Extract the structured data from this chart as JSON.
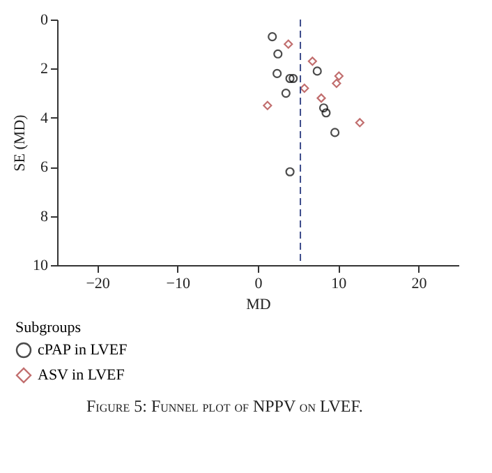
{
  "chart_data": {
    "type": "scatter",
    "xlabel": "MD",
    "ylabel": "SE (MD)",
    "legend_title": "Subgroups",
    "xlim": [
      -25,
      25
    ],
    "xticks": [
      -20,
      -10,
      0,
      10,
      20
    ],
    "ylim": [
      10,
      0
    ],
    "yticks": [
      0,
      2,
      4,
      6,
      8,
      10
    ],
    "grid": false,
    "legend": "bottom left",
    "series": [
      {
        "name": "cPAP in LVEF",
        "color": "#000000",
        "marker": "circle",
        "x": [
          1.8,
          2.5,
          2.4,
          4.0,
          4.4,
          3.5,
          7.4,
          8.2,
          8.5,
          9.6,
          4.0
        ],
        "values": [
          0.7,
          1.4,
          2.2,
          2.4,
          2.4,
          3.0,
          2.1,
          3.6,
          3.8,
          4.6,
          6.2
        ]
      },
      {
        "name": "ASV in LVEF",
        "color": "#a83232",
        "marker": "diamond",
        "x": [
          3.8,
          6.8,
          10.1,
          9.8,
          5.8,
          7.9,
          1.2,
          12.7
        ],
        "values": [
          1.0,
          1.7,
          2.3,
          2.6,
          2.8,
          3.2,
          3.5,
          4.2
        ]
      }
    ],
    "ref_lines": [
      {
        "axis": "x",
        "value": 5.3,
        "color": "#3b4a8a",
        "line_style": "dashed"
      }
    ],
    "annotations": [
      "Figure 5: Funnel plot of NPPV on LVEF."
    ]
  }
}
